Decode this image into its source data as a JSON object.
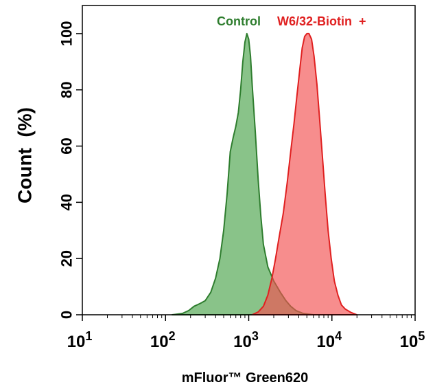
{
  "chart_data": {
    "type": "area",
    "title": "",
    "xlabel": "mFluor™ Green620",
    "ylabel": "Count  (%)",
    "x_scale": "log",
    "xlim": [
      10,
      100000
    ],
    "ylim": [
      0,
      110
    ],
    "x_ticks": [
      {
        "value": 10,
        "base": "10",
        "exp": "1"
      },
      {
        "value": 100,
        "base": "10",
        "exp": "2"
      },
      {
        "value": 1000,
        "base": "10",
        "exp": "3"
      },
      {
        "value": 10000,
        "base": "10",
        "exp": "4"
      },
      {
        "value": 100000,
        "base": "10",
        "exp": "5"
      }
    ],
    "y_ticks": [
      0,
      20,
      40,
      60,
      80,
      100
    ],
    "grid": false,
    "legend_placement": "top",
    "series": [
      {
        "name": "Control",
        "color": "#2e7d2e",
        "fill": "#4aa34a",
        "points": [
          [
            120,
            0
          ],
          [
            160,
            0.5
          ],
          [
            190,
            1.5
          ],
          [
            220,
            3
          ],
          [
            260,
            4
          ],
          [
            300,
            5
          ],
          [
            350,
            8
          ],
          [
            400,
            13
          ],
          [
            450,
            20
          ],
          [
            500,
            30
          ],
          [
            550,
            43
          ],
          [
            600,
            58
          ],
          [
            650,
            63
          ],
          [
            700,
            67
          ],
          [
            750,
            72
          ],
          [
            800,
            80
          ],
          [
            850,
            90
          ],
          [
            900,
            97
          ],
          [
            950,
            100
          ],
          [
            1000,
            98
          ],
          [
            1050,
            92
          ],
          [
            1100,
            82
          ],
          [
            1200,
            65
          ],
          [
            1300,
            48
          ],
          [
            1400,
            35
          ],
          [
            1500,
            25
          ],
          [
            1700,
            17
          ],
          [
            2000,
            12
          ],
          [
            2400,
            8
          ],
          [
            2800,
            5
          ],
          [
            3200,
            3
          ],
          [
            3700,
            1.5
          ],
          [
            4500,
            0.5
          ],
          [
            6000,
            0
          ]
        ]
      },
      {
        "name": "W6/32-Biotin  +",
        "color": "#e02020",
        "fill": "#f25050",
        "points": [
          [
            1100,
            0
          ],
          [
            1300,
            1
          ],
          [
            1500,
            3
          ],
          [
            1700,
            7
          ],
          [
            1900,
            13
          ],
          [
            2100,
            20
          ],
          [
            2300,
            27
          ],
          [
            2600,
            36
          ],
          [
            2900,
            47
          ],
          [
            3200,
            58
          ],
          [
            3500,
            68
          ],
          [
            3800,
            78
          ],
          [
            4100,
            87
          ],
          [
            4400,
            95
          ],
          [
            4700,
            99
          ],
          [
            5000,
            100
          ],
          [
            5300,
            100
          ],
          [
            5700,
            98
          ],
          [
            6100,
            92
          ],
          [
            6600,
            82
          ],
          [
            7100,
            70
          ],
          [
            7700,
            56
          ],
          [
            8300,
            43
          ],
          [
            9000,
            30
          ],
          [
            9800,
            20
          ],
          [
            10700,
            12
          ],
          [
            11800,
            7
          ],
          [
            13000,
            3.5
          ],
          [
            14500,
            2
          ],
          [
            17000,
            0.8
          ],
          [
            20000,
            0
          ]
        ]
      }
    ]
  }
}
